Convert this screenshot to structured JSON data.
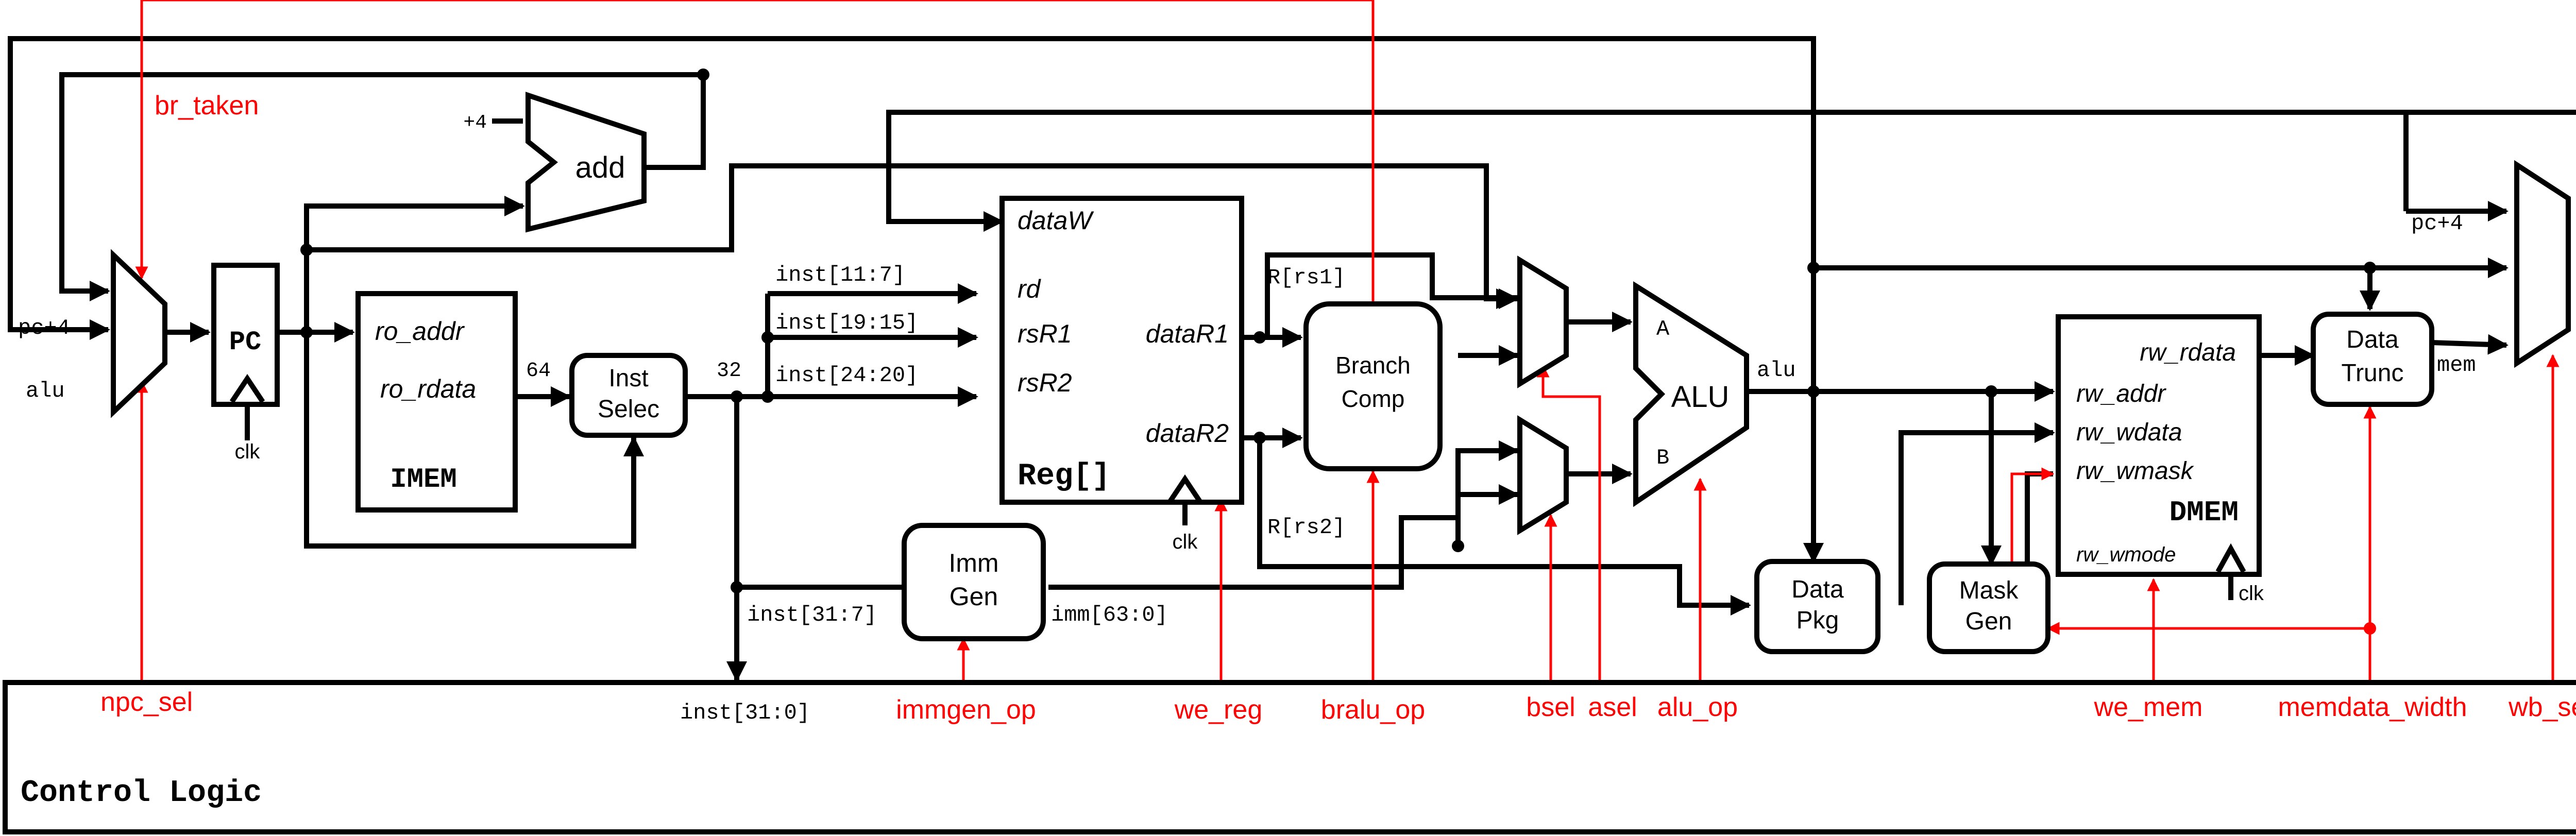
{
  "signals": {
    "br_taken": "br_taken",
    "npc_sel": "npc_sel",
    "immgen_op": "immgen_op",
    "we_reg": "we_reg",
    "bralu_op": "bralu_op",
    "bsel": "bsel",
    "asel": "asel",
    "alu_op": "alu_op",
    "we_mem": "we_mem",
    "memdata_width": "memdata_width",
    "wb_sel": "wb_sel"
  },
  "wires": {
    "plus4": "+4",
    "pc4_in": "pc+4",
    "alu_in": "alu",
    "w64": "64",
    "w32": "32",
    "inst_11_7": "inst[11:7]",
    "inst_19_15": "inst[19:15]",
    "inst_24_20": "inst[24:20]",
    "inst_31_7": "inst[31:7]",
    "inst_31_0": "inst[31:0]",
    "imm": "imm[63:0]",
    "rs1": "R[rs1]",
    "rs2": "R[rs2]",
    "alu_out": "alu",
    "pc4_wb": "pc+4",
    "mem": "mem",
    "clk": "clk"
  },
  "blocks": {
    "add": "add",
    "pc": "PC",
    "imem": {
      "ro_addr": "ro_addr",
      "ro_rdata": "ro_rdata",
      "title": "IMEM"
    },
    "inst_selec": [
      "Inst",
      "Selec"
    ],
    "imm_gen": [
      "Imm",
      "Gen"
    ],
    "reg": {
      "dataW": "dataW",
      "rd": "rd",
      "rsR1": "rsR1",
      "rsR2": "rsR2",
      "dataR1": "dataR1",
      "dataR2": "dataR2",
      "title": "Reg[]"
    },
    "branch_comp": [
      "Branch",
      "Comp"
    ],
    "alu": {
      "a": "A",
      "b": "B",
      "title": "ALU"
    },
    "data_pkg": [
      "Data",
      "Pkg"
    ],
    "mask_gen": [
      "Mask",
      "Gen"
    ],
    "dmem": {
      "rw_rdata": "rw_rdata",
      "rw_addr": "rw_addr",
      "rw_wdata": "rw_wdata",
      "rw_wmask": "rw_wmask",
      "title": "DMEM",
      "rw_wmode": "rw_wmode"
    },
    "data_trunc": [
      "Data",
      "Trunc"
    ],
    "control": "Control Logic"
  }
}
